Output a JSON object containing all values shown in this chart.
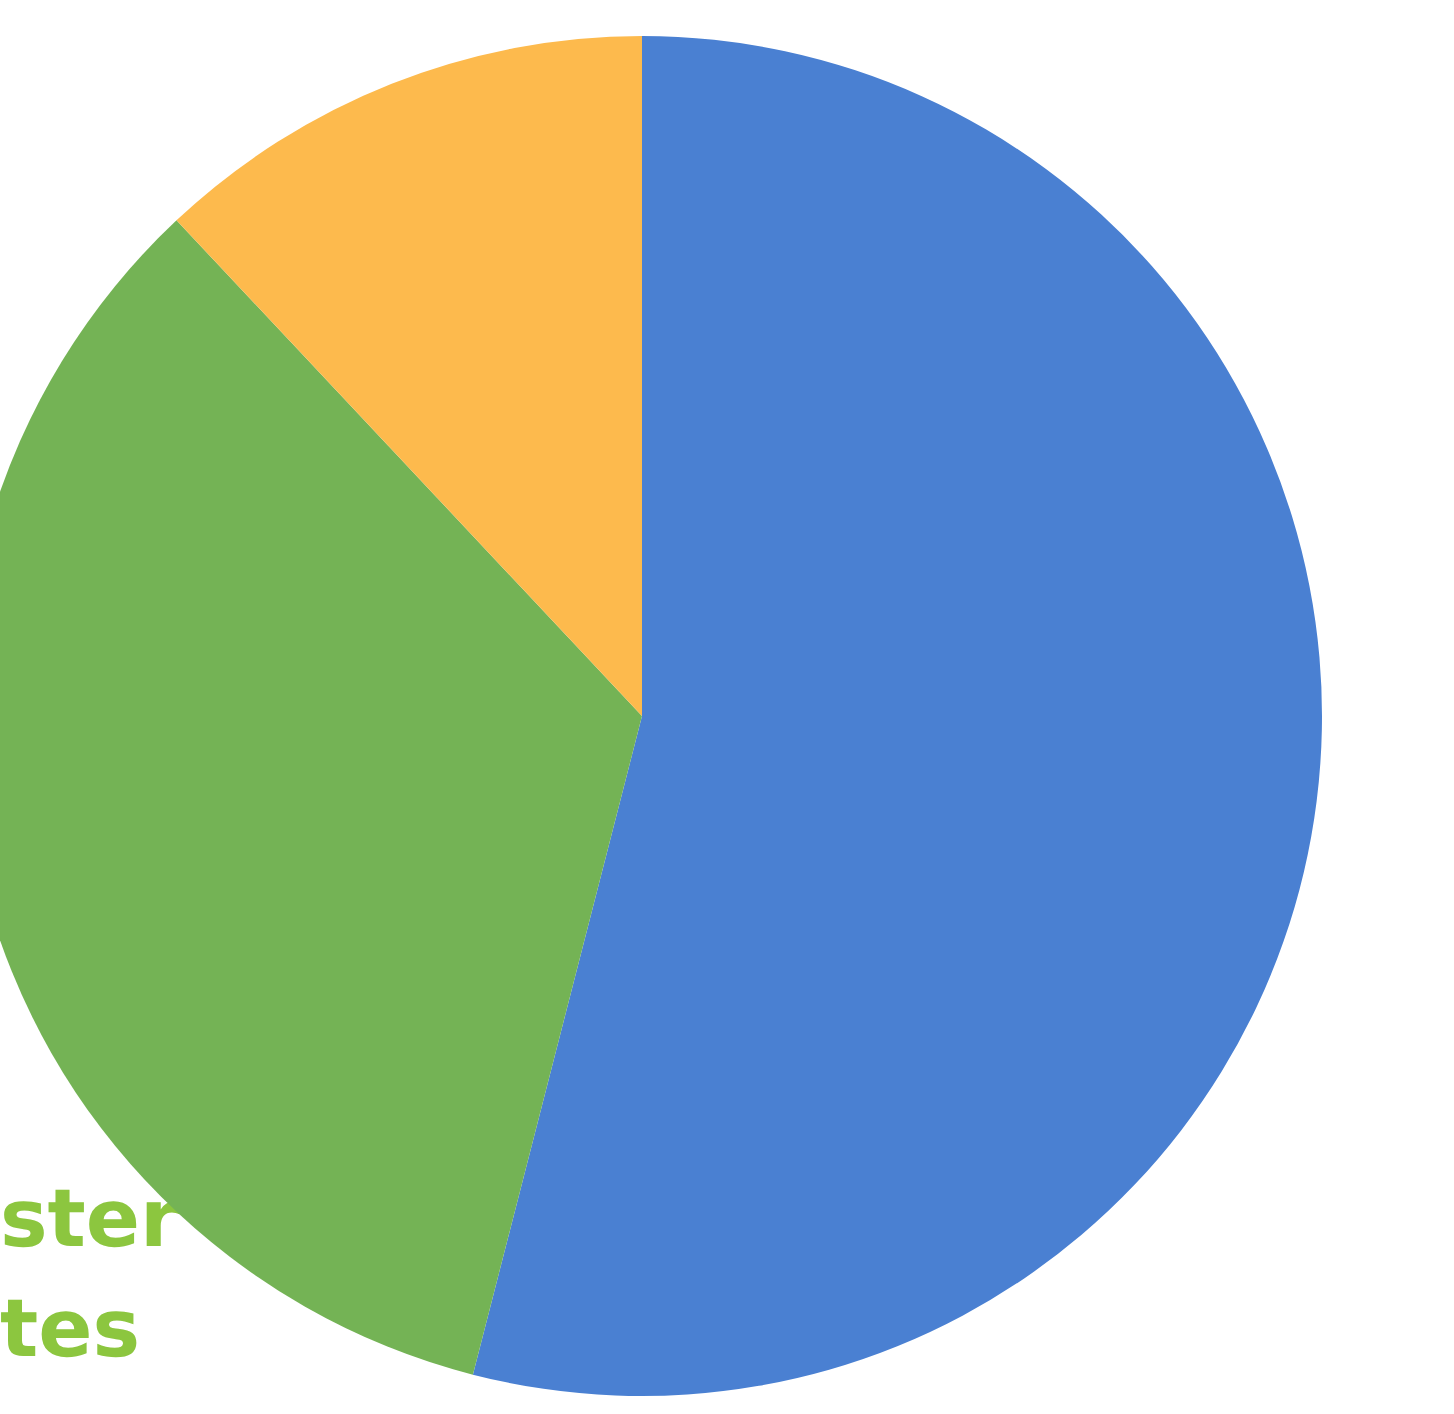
{
  "chart_data": {
    "type": "pie",
    "categories": [
      null,
      null,
      null
    ],
    "values": [
      54,
      34,
      12
    ],
    "colors": [
      "#4a80d2",
      "#74b355",
      "#fdba4d"
    ],
    "annotations": [
      "ster",
      "tes"
    ]
  }
}
